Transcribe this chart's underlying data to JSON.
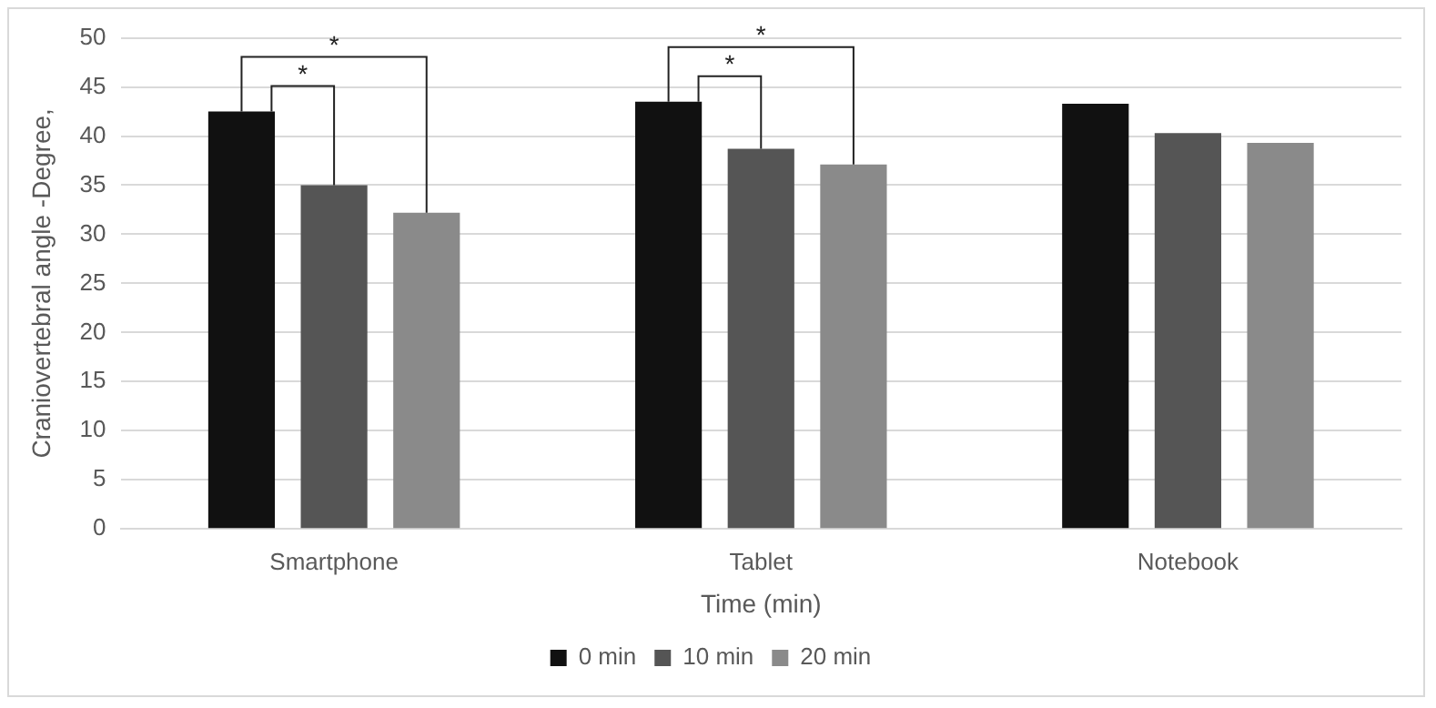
{
  "chart_data": {
    "type": "bar",
    "xlabel": "Time (min)",
    "ylabel": "Craniovertebral angle -Degree,",
    "categories": [
      "Smartphone",
      "Tablet",
      "Notebook"
    ],
    "series": [
      {
        "name": "0 min",
        "color": "#111111",
        "values": [
          42.5,
          43.5,
          43.3
        ]
      },
      {
        "name": "10 min",
        "color": "#555555",
        "values": [
          35,
          38.7,
          40.3
        ]
      },
      {
        "name": "20 min",
        "color": "#8a8a8a",
        "values": [
          32.2,
          37.1,
          39.3
        ]
      }
    ],
    "annotations": [
      "*",
      "*",
      "*",
      "*"
    ],
    "ylim": [
      0,
      50
    ],
    "yticks": [
      0,
      5,
      10,
      15,
      20,
      25,
      30,
      35,
      40,
      45,
      50
    ],
    "grid": "y",
    "legend": "bottom"
  }
}
